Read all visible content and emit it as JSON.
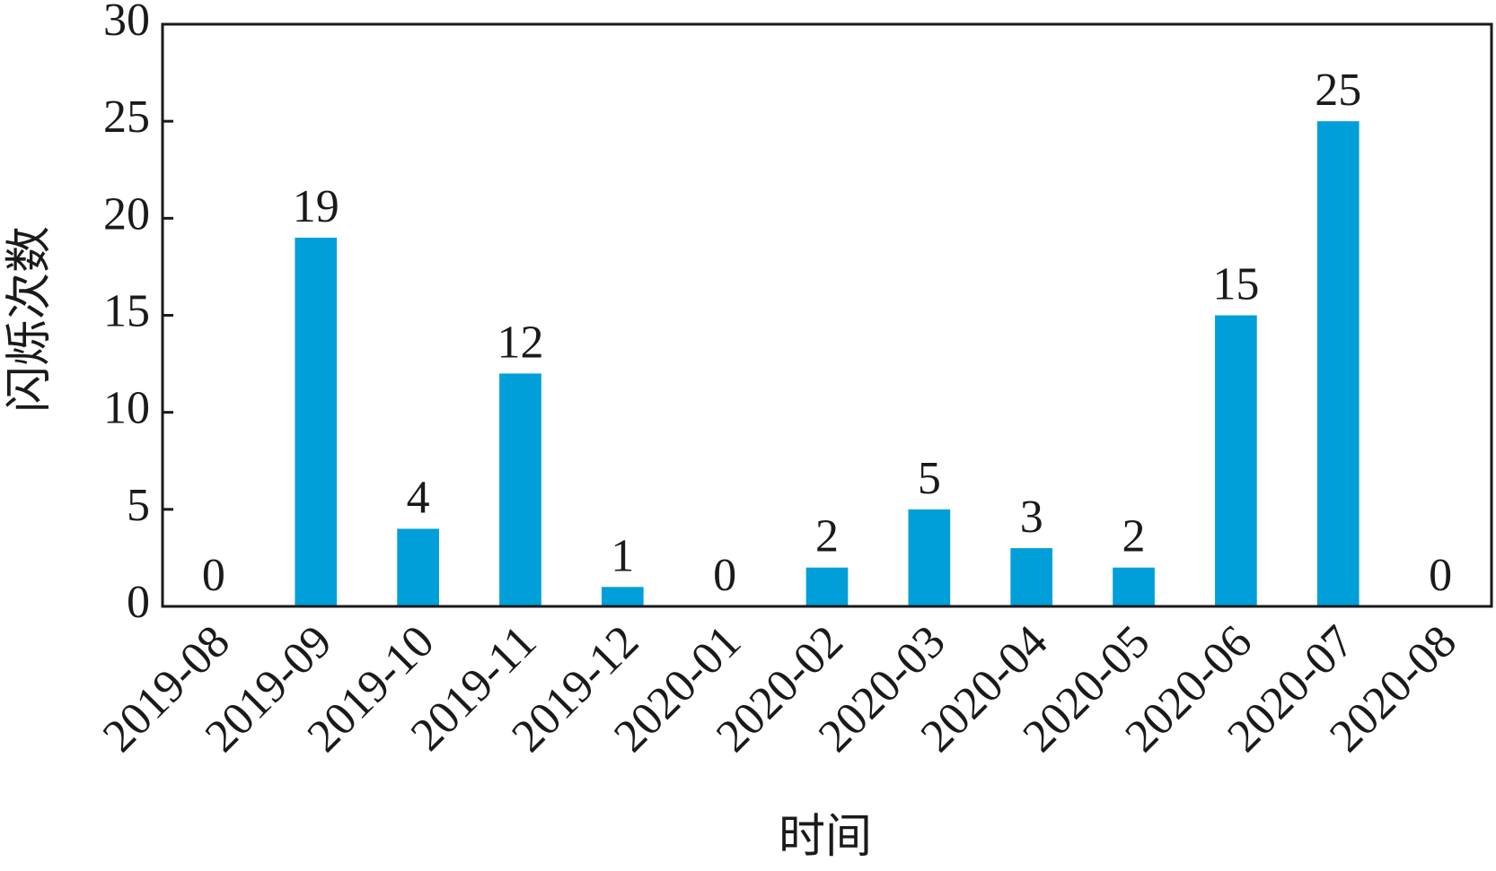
{
  "chart_data": {
    "type": "bar",
    "x_label": "时间",
    "y_label": "闪烁次数",
    "categories": [
      "2019-08",
      "2019-09",
      "2019-10",
      "2019-11",
      "2019-12",
      "2020-01",
      "2020-02",
      "2020-03",
      "2020-04",
      "2020-05",
      "2020-06",
      "2020-07",
      "2020-08"
    ],
    "values": [
      0,
      19,
      4,
      12,
      1,
      0,
      2,
      5,
      3,
      2,
      15,
      25,
      0
    ],
    "color": "#009fd9",
    "ylim": [
      0,
      30
    ],
    "yticks": [
      0,
      5,
      10,
      15,
      20,
      25,
      30
    ],
    "grid": false,
    "data_labels": true
  }
}
